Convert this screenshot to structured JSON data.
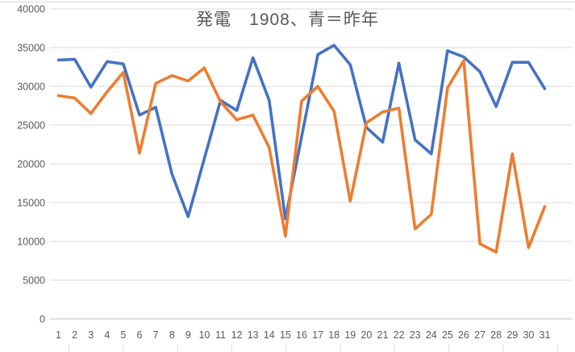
{
  "chart_data": {
    "type": "line",
    "title": "発電　1908、青＝昨年",
    "title_meaning": "blue = last year",
    "x": [
      1,
      2,
      3,
      4,
      5,
      6,
      7,
      8,
      9,
      10,
      11,
      12,
      13,
      14,
      15,
      16,
      17,
      18,
      19,
      20,
      21,
      22,
      23,
      24,
      25,
      26,
      27,
      28,
      29,
      30,
      31
    ],
    "series": [
      {
        "name": "昨年",
        "color": "#4472C4",
        "values": [
          33400,
          33500,
          29900,
          33200,
          32900,
          26300,
          27300,
          18700,
          13200,
          20700,
          28200,
          26900,
          33700,
          28200,
          12900,
          23500,
          34100,
          35300,
          32800,
          24700,
          22800,
          33000,
          23100,
          21300,
          34600,
          33800,
          31900,
          27400,
          33100,
          33100,
          29700
        ]
      },
      {
        "name": "1908",
        "color": "#ED7D31",
        "values": [
          28800,
          28500,
          26500,
          29300,
          31800,
          21400,
          30400,
          31400,
          30700,
          32400,
          28000,
          25700,
          26300,
          22100,
          10700,
          28100,
          30000,
          26800,
          15200,
          25300,
          26700,
          27200,
          11600,
          13500,
          29800,
          33300,
          9700,
          8600,
          21300,
          9200,
          14500
        ]
      }
    ],
    "ylim": [
      0,
      40000
    ],
    "ytick_interval": 5000,
    "ytick_labels": [
      "0",
      "5000",
      "10000",
      "15000",
      "20000",
      "25000",
      "30000",
      "35000",
      "40000"
    ],
    "xtick_labels": [
      "1",
      "2",
      "3",
      "4",
      "5",
      "6",
      "7",
      "8",
      "9",
      "10",
      "11",
      "12",
      "13",
      "14",
      "15",
      "16",
      "17",
      "18",
      "19",
      "20",
      "21",
      "22",
      "23",
      "24",
      "25",
      "26",
      "27",
      "28",
      "29",
      "30",
      "31"
    ],
    "grid": true,
    "legend_position": "none"
  },
  "colors": {
    "background": "#ffffff",
    "gridline": "#d9d9d9",
    "axis_text": "#595959",
    "title_text": "#595959",
    "blue_series": "#4472C4",
    "orange_series": "#ED7D31"
  }
}
